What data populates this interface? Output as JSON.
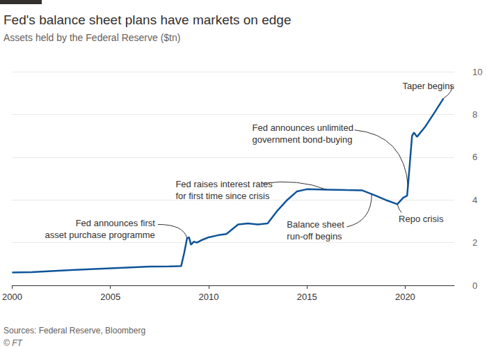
{
  "chart_data": {
    "type": "line",
    "title": "Fed's balance sheet plans have markets on edge",
    "subtitle": "Assets held by the Federal Reserve ($tn)",
    "source": "Sources: Federal Reserve, Bloomberg",
    "credit": "© FT",
    "color": "#0f5499",
    "x": [
      2000,
      2001,
      2002,
      2003,
      2004,
      2005,
      2006,
      2007,
      2008,
      2008.6,
      2008.75,
      2008.9,
      2009,
      2009.1,
      2009.25,
      2009.4,
      2009.6,
      2010,
      2010.5,
      2010.9,
      2011.5,
      2012,
      2012.5,
      2013,
      2013.5,
      2014,
      2014.5,
      2015,
      2016,
      2017,
      2017.8,
      2018.5,
      2019,
      2019.6,
      2019.9,
      2020.1,
      2020.2,
      2020.35,
      2020.45,
      2020.6,
      2021,
      2021.5,
      2021.95
    ],
    "values": [
      0.6,
      0.62,
      0.67,
      0.72,
      0.76,
      0.8,
      0.84,
      0.88,
      0.89,
      0.9,
      1.5,
      2.2,
      2.25,
      1.9,
      2.05,
      2.0,
      2.1,
      2.25,
      2.35,
      2.4,
      2.85,
      2.9,
      2.85,
      2.9,
      3.5,
      4.0,
      4.4,
      4.5,
      4.48,
      4.46,
      4.45,
      4.2,
      4.0,
      3.8,
      4.1,
      4.2,
      5.3,
      7.0,
      7.15,
      6.95,
      7.4,
      8.1,
      8.75
    ],
    "xlim": [
      2000,
      2022.5
    ],
    "xticks": [
      2000,
      2005,
      2010,
      2015,
      2020
    ],
    "ylim": [
      0,
      10
    ],
    "yticks": [
      0,
      2,
      4,
      6,
      8,
      10
    ],
    "grid": true,
    "annotations": [
      {
        "text": "Fed announces first\nasset purchase programme",
        "x": 2008.9,
        "y": 2.2
      },
      {
        "text": "Fed raises interest rates\nfor first time since crisis",
        "x": 2016,
        "y": 4.48
      },
      {
        "text": "Balance sheet\nrun-off begins",
        "x": 2018.3,
        "y": 4.3
      },
      {
        "text": "Repo crisis",
        "x": 2019.6,
        "y": 3.8
      },
      {
        "text": "Fed announces unlimited\ngovernment bond-buying",
        "x": 2020.15,
        "y": 4.6
      },
      {
        "text": "Taper begins",
        "x": 2021.95,
        "y": 8.75
      }
    ]
  }
}
